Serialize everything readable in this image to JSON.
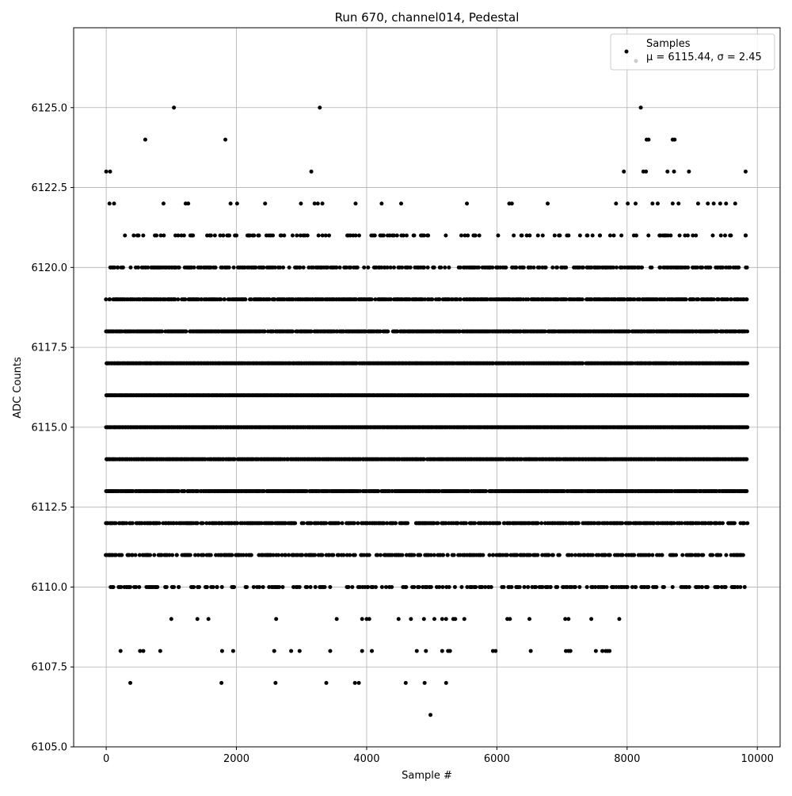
{
  "chart_data": {
    "type": "scatter",
    "title": "Run 670, channel014, Pedestal",
    "xlabel": "Sample #",
    "ylabel": "ADC Counts",
    "xlim": [
      -500,
      10350
    ],
    "ylim": [
      6105.0,
      6127.5
    ],
    "xticks": [
      0,
      2000,
      4000,
      6000,
      8000,
      10000
    ],
    "yticks": [
      6105.0,
      6107.5,
      6110.0,
      6112.5,
      6115.0,
      6117.5,
      6120.0,
      6122.5,
      6125.0
    ],
    "xtick_labels": [
      "0",
      "2000",
      "4000",
      "6000",
      "8000",
      "10000"
    ],
    "ytick_labels": [
      "6105.0",
      "6107.5",
      "6110.0",
      "6112.5",
      "6115.0",
      "6117.5",
      "6120.0",
      "6122.5",
      "6125.0"
    ],
    "grid": true,
    "legend": {
      "placement": "top-right",
      "entry_label": "Samples",
      "stats_text": "μ = 6115.44, σ = 2.45"
    },
    "series": [
      {
        "name": "Samples",
        "color": "#000000",
        "x_range": [
          0,
          9850
        ],
        "dense_levels": [
          {
            "y": 6113,
            "density": 0.9
          },
          {
            "y": 6114,
            "density": 0.95
          },
          {
            "y": 6115,
            "density": 1.0
          },
          {
            "y": 6116,
            "density": 1.0
          },
          {
            "y": 6117,
            "density": 0.95
          },
          {
            "y": 6118,
            "density": 0.85
          },
          {
            "y": 6119,
            "density": 0.7
          },
          {
            "y": 6120,
            "density": 0.45
          },
          {
            "y": 6111,
            "density": 0.45
          },
          {
            "y": 6112,
            "density": 0.6
          },
          {
            "y": 6110,
            "density": 0.3
          },
          {
            "y": 6121,
            "density": 0.18
          }
        ],
        "sparse_points": [
          [
            0,
            6123
          ],
          [
            60,
            6123
          ],
          [
            50,
            6122
          ],
          [
            120,
            6122
          ],
          [
            600,
            6124
          ],
          [
            1040,
            6125
          ],
          [
            880,
            6122
          ],
          [
            1220,
            6122
          ],
          [
            1260,
            6122
          ],
          [
            1830,
            6124
          ],
          [
            1910,
            6122
          ],
          [
            2010,
            6122
          ],
          [
            2440,
            6122
          ],
          [
            2990,
            6122
          ],
          [
            3150,
            6123
          ],
          [
            3200,
            6122
          ],
          [
            3250,
            6122
          ],
          [
            3280,
            6125
          ],
          [
            3320,
            6122
          ],
          [
            3830,
            6122
          ],
          [
            4230,
            6122
          ],
          [
            4530,
            6122
          ],
          [
            5540,
            6122
          ],
          [
            6190,
            6122
          ],
          [
            6230,
            6122
          ],
          [
            6780,
            6122
          ],
          [
            7830,
            6122
          ],
          [
            7950,
            6123
          ],
          [
            8010,
            6122
          ],
          [
            8130,
            6122
          ],
          [
            8210,
            6125
          ],
          [
            8250,
            6123
          ],
          [
            8290,
            6123
          ],
          [
            8300,
            6124
          ],
          [
            8330,
            6124
          ],
          [
            8390,
            6122
          ],
          [
            8470,
            6122
          ],
          [
            8620,
            6123
          ],
          [
            8700,
            6124
          ],
          [
            8730,
            6124
          ],
          [
            8700,
            6122
          ],
          [
            8720,
            6123
          ],
          [
            8790,
            6122
          ],
          [
            8950,
            6123
          ],
          [
            9090,
            6122
          ],
          [
            9240,
            6122
          ],
          [
            9330,
            6122
          ],
          [
            9430,
            6122
          ],
          [
            9520,
            6122
          ],
          [
            9660,
            6122
          ],
          [
            9820,
            6123
          ],
          [
            1000,
            6109
          ],
          [
            1400,
            6109
          ],
          [
            1570,
            6109
          ],
          [
            2610,
            6109
          ],
          [
            3540,
            6109
          ],
          [
            3930,
            6109
          ],
          [
            4000,
            6109
          ],
          [
            4040,
            6109
          ],
          [
            4490,
            6109
          ],
          [
            4680,
            6109
          ],
          [
            4880,
            6109
          ],
          [
            5040,
            6109
          ],
          [
            5160,
            6109
          ],
          [
            5220,
            6109
          ],
          [
            5330,
            6109
          ],
          [
            5360,
            6109
          ],
          [
            5500,
            6109
          ],
          [
            6160,
            6109
          ],
          [
            6200,
            6109
          ],
          [
            6500,
            6109
          ],
          [
            7050,
            6109
          ],
          [
            7100,
            6109
          ],
          [
            7450,
            6109
          ],
          [
            7880,
            6109
          ],
          [
            220,
            6108
          ],
          [
            520,
            6108
          ],
          [
            570,
            6108
          ],
          [
            830,
            6108
          ],
          [
            1780,
            6108
          ],
          [
            1950,
            6108
          ],
          [
            2580,
            6108
          ],
          [
            2840,
            6108
          ],
          [
            2970,
            6108
          ],
          [
            3440,
            6108
          ],
          [
            3930,
            6108
          ],
          [
            4080,
            6108
          ],
          [
            4770,
            6108
          ],
          [
            4910,
            6108
          ],
          [
            5160,
            6108
          ],
          [
            5250,
            6108
          ],
          [
            5280,
            6108
          ],
          [
            5940,
            6108
          ],
          [
            5980,
            6108
          ],
          [
            6520,
            6108
          ],
          [
            7060,
            6108
          ],
          [
            7100,
            6108
          ],
          [
            7130,
            6108
          ],
          [
            7520,
            6108
          ],
          [
            7620,
            6108
          ],
          [
            7670,
            6108
          ],
          [
            7700,
            6108
          ],
          [
            7730,
            6108
          ],
          [
            370,
            6107
          ],
          [
            1770,
            6107
          ],
          [
            2600,
            6107
          ],
          [
            3380,
            6107
          ],
          [
            3820,
            6107
          ],
          [
            3880,
            6107
          ],
          [
            4600,
            6107
          ],
          [
            4890,
            6107
          ],
          [
            5220,
            6107
          ],
          [
            4980,
            6106
          ]
        ]
      }
    ]
  }
}
